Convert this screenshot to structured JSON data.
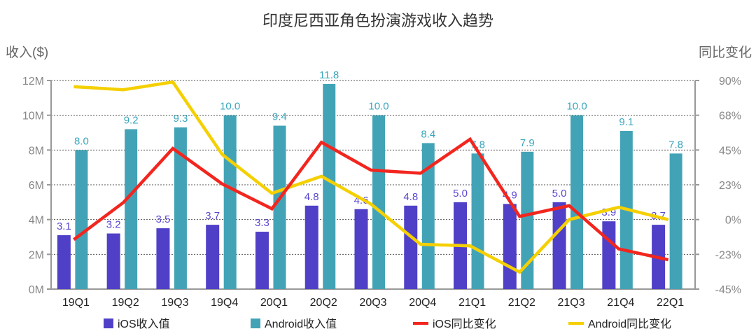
{
  "chart_data": {
    "type": "bar+line",
    "title": "印度尼西亚角色扮演游戏收入趋势",
    "ylabel": "收入($)",
    "y2label": "同比变化",
    "categories": [
      "19Q1",
      "19Q2",
      "19Q3",
      "19Q4",
      "20Q1",
      "20Q2",
      "20Q3",
      "20Q4",
      "21Q1",
      "21Q2",
      "21Q3",
      "21Q4",
      "22Q1"
    ],
    "ylim": [
      0,
      12
    ],
    "yticks": [
      "0M",
      "2M",
      "4M",
      "6M",
      "8M",
      "10M",
      "12M"
    ],
    "y2lim": [
      -45,
      90
    ],
    "y2ticks": [
      "-45%",
      "-23%",
      "0%",
      "23%",
      "45%",
      "68%",
      "90%"
    ],
    "grid": true,
    "legend_position": "bottom",
    "series": [
      {
        "name": "iOS收入值",
        "type": "bar",
        "axis": "left",
        "color": "#5040C8",
        "values": [
          3.1,
          3.2,
          3.5,
          3.7,
          3.3,
          4.8,
          4.6,
          4.8,
          5.0,
          4.9,
          5.0,
          3.9,
          3.7
        ]
      },
      {
        "name": "Android收入值",
        "type": "bar",
        "axis": "left",
        "color": "#43A3B6",
        "values": [
          8.0,
          9.2,
          9.3,
          10.0,
          9.4,
          11.8,
          10.0,
          8.4,
          7.8,
          7.9,
          10.0,
          9.1,
          7.8
        ]
      },
      {
        "name": "iOS同比变化",
        "type": "line",
        "axis": "right",
        "color": "#F2261E",
        "values": [
          -13,
          11,
          46,
          23,
          7,
          50,
          32,
          30,
          52,
          2,
          9,
          -19,
          -26
        ]
      },
      {
        "name": "Android同比变化",
        "type": "line",
        "axis": "right",
        "color": "#F5D000",
        "values": [
          86,
          84,
          89,
          42,
          17,
          28,
          10,
          -16,
          -17,
          -34,
          0,
          8,
          0
        ]
      }
    ]
  }
}
